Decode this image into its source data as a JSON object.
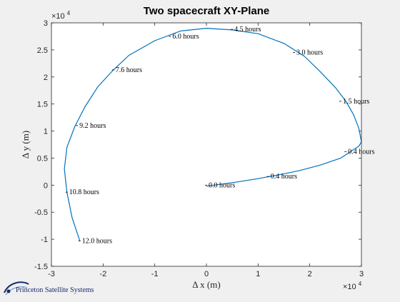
{
  "chart_data": {
    "type": "line",
    "title": "Two spacecraft XY-Plane",
    "xlabel": "Δ x (m)",
    "ylabel": "Δ y (m)",
    "x_exponent_base": "×10",
    "x_exponent_power": "4",
    "y_exponent_base": "×10",
    "y_exponent_power": "4",
    "xlim": [
      -3,
      3
    ],
    "ylim": [
      -1.5,
      3
    ],
    "xticks": [
      -3,
      -2,
      -1,
      0,
      1,
      2,
      3
    ],
    "xtick_labels": [
      "-3",
      "-2",
      "-1",
      "0",
      "1",
      "2",
      "3"
    ],
    "yticks": [
      -1.5,
      -1,
      -0.5,
      0,
      0.5,
      1,
      1.5,
      2,
      2.5,
      3
    ],
    "ytick_labels": [
      "-1.5",
      "-1",
      "-0.5",
      "0",
      "0.5",
      "1",
      "1.5",
      "2",
      "2.5",
      "3"
    ],
    "grid": false,
    "line_color": "#0072bd",
    "series": [
      {
        "x": [
          0.0,
          0.3,
          0.6,
          1.0,
          1.4,
          1.8,
          2.2,
          2.6,
          2.95,
          3.0,
          2.95,
          2.85,
          2.7,
          2.5,
          2.2,
          1.9,
          1.5,
          1.0,
          0.5,
          0.0,
          -0.5,
          -1.0,
          -1.5,
          -1.8,
          -2.1,
          -2.35,
          -2.55,
          -2.7,
          -2.75,
          -2.7,
          -2.6,
          -2.45
        ],
        "y": [
          -0.02,
          0.02,
          0.06,
          0.12,
          0.19,
          0.27,
          0.37,
          0.5,
          0.72,
          0.8,
          1.05,
          1.3,
          1.55,
          1.8,
          2.1,
          2.38,
          2.62,
          2.8,
          2.87,
          2.9,
          2.85,
          2.67,
          2.4,
          2.13,
          1.82,
          1.45,
          1.08,
          0.7,
          0.3,
          -0.13,
          -0.6,
          -1.03
        ]
      }
    ],
    "annotations": [
      {
        "x": 0.0,
        "y": 0.0,
        "label": "0.0 hours"
      },
      {
        "x": 1.2,
        "y": 0.16,
        "label": "0.4 hours"
      },
      {
        "x": 2.7,
        "y": 0.62,
        "label": "0.4 hours"
      },
      {
        "x": 2.6,
        "y": 1.55,
        "label": "1.5 hours"
      },
      {
        "x": 1.7,
        "y": 2.45,
        "label": "3.0 hours"
      },
      {
        "x": 0.5,
        "y": 2.88,
        "label": "4.5 hours"
      },
      {
        "x": -0.7,
        "y": 2.75,
        "label": "6.0 hours"
      },
      {
        "x": -1.8,
        "y": 2.13,
        "label": "7.6 hours"
      },
      {
        "x": -2.5,
        "y": 1.1,
        "label": "9.2 hours"
      },
      {
        "x": -2.7,
        "y": -0.13,
        "label": "10.8 hours"
      },
      {
        "x": -2.45,
        "y": -1.03,
        "label": "12.0 hours"
      }
    ]
  },
  "logo": {
    "text": "Princeton Satellite Systems",
    "icon": "orbit-swoosh-icon",
    "color": "#1a2a6c"
  }
}
